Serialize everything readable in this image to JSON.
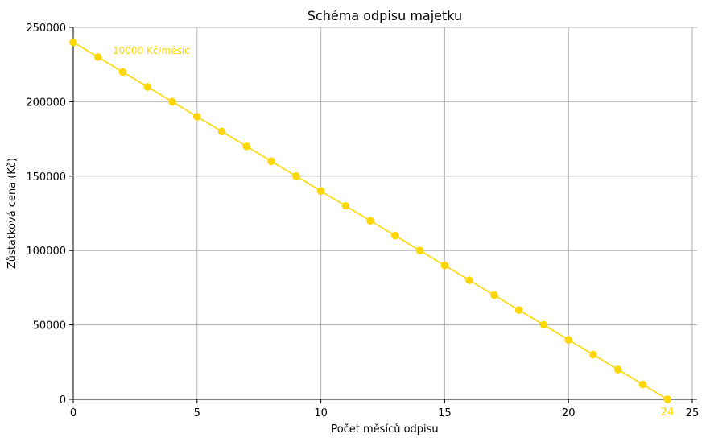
{
  "chart_data": {
    "type": "line",
    "title": "Schéma odpisu majetku",
    "xlabel": "Počet měsíců odpisu",
    "ylabel": "Zůstatková cena (Kč)",
    "xlim": [
      0,
      25
    ],
    "ylim": [
      0,
      250000
    ],
    "xticks": [
      0,
      5,
      10,
      15,
      20,
      25
    ],
    "yticks": [
      0,
      50000,
      100000,
      150000,
      200000,
      250000
    ],
    "grid": true,
    "color": "#FFD700",
    "series": [
      {
        "x": [
          0,
          1,
          2,
          3,
          4,
          5,
          6,
          7,
          8,
          9,
          10,
          11,
          12,
          13,
          14,
          15,
          16,
          17,
          18,
          19,
          20,
          21,
          22,
          23,
          24
        ],
        "y": [
          240000,
          230000,
          220000,
          210000,
          200000,
          190000,
          180000,
          170000,
          160000,
          150000,
          140000,
          130000,
          120000,
          110000,
          100000,
          90000,
          80000,
          70000,
          60000,
          50000,
          40000,
          30000,
          20000,
          10000,
          0
        ]
      }
    ],
    "annotations": [
      {
        "text": "10000 Kč/měsíc"
      },
      {
        "text": "24"
      }
    ]
  }
}
